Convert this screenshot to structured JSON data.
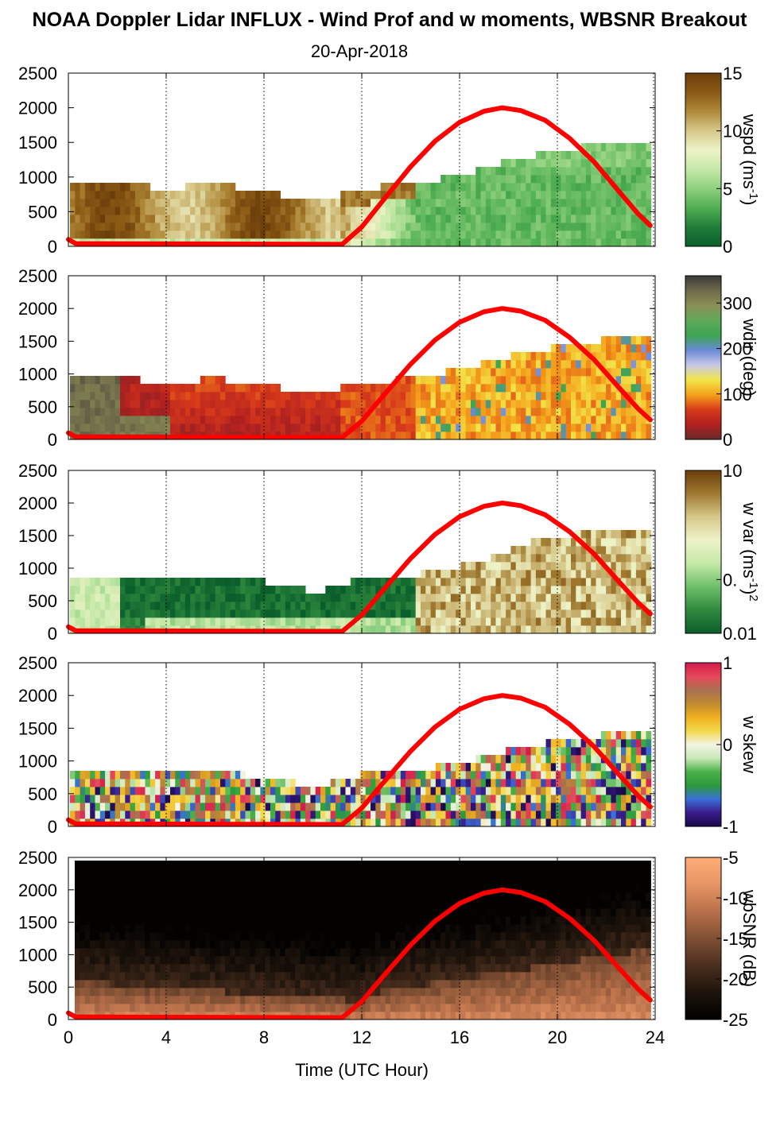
{
  "title": "NOAA Doppler Lidar INFLUX - Wind Prof and w moments, WBSNR Breakout",
  "subtitle": "20-Apr-2018",
  "x_axis": {
    "label": "Time (UTC Hour)",
    "range": [
      0,
      24
    ],
    "ticks": [
      0,
      4,
      8,
      12,
      16,
      20,
      24
    ]
  },
  "chart_data": [
    {
      "type": "heatmap",
      "panel": "wspd",
      "colorbar_label": "wspd (ms",
      "colorbar_sup": "-1",
      "colorbar_close": ")",
      "colorbar_range": [
        0,
        15
      ],
      "colorbar_ticks": [
        "15",
        "10",
        "5",
        "0"
      ],
      "colorbar_colors": [
        "#6b3d0a",
        "#8a5a15",
        "#b08a3a",
        "#d7c88a",
        "#eef3c8",
        "#c6e9a8",
        "#8fd07d",
        "#4fae52",
        "#1f7d3a",
        "#0a5e2b"
      ],
      "yrange": [
        0,
        2500
      ],
      "yticks": [
        0,
        500,
        1000,
        1500,
        2000,
        2500
      ],
      "xrange": [
        0,
        24
      ],
      "approx_data_top_m": [
        [
          0,
          950
        ],
        [
          2,
          950
        ],
        [
          4,
          900
        ],
        [
          6,
          950
        ],
        [
          8,
          850
        ],
        [
          10,
          700
        ],
        [
          12,
          900
        ],
        [
          14,
          950
        ],
        [
          16,
          1100
        ],
        [
          18,
          1300
        ],
        [
          20,
          1450
        ],
        [
          22,
          1550
        ],
        [
          24,
          1550
        ]
      ],
      "approx_wind_speed_ms": "10-15 in 0-11 UTC below 900 m; 2-6 in 14-24 UTC"
    },
    {
      "type": "heatmap",
      "panel": "wdir",
      "colorbar_label": "wdir (deg)",
      "colorbar_range": [
        0,
        360
      ],
      "colorbar_ticks": [
        "300",
        "200",
        "100",
        "0"
      ],
      "colorbar_colors": [
        "#3a3a3a",
        "#6f6a4a",
        "#8a8f55",
        "#5fa85a",
        "#3da550",
        "#6a8ad8",
        "#c8c8e8",
        "#f2e64a",
        "#f5a21a",
        "#d83a1a",
        "#b02020",
        "#6a2a2a"
      ],
      "yrange": [
        0,
        2500
      ],
      "yticks": [
        0,
        500,
        1000,
        1500,
        2000,
        2500
      ],
      "xrange": [
        0,
        24
      ],
      "approx_direction_deg": "320-360 at 0-2 UTC; 10-60 from 4-11 UTC; 60-110 after 14 UTC"
    },
    {
      "type": "heatmap",
      "panel": "w var",
      "colorbar_label": "w var (ms",
      "colorbar_sup": "-1",
      "colorbar_close": ")",
      "colorbar_sup2": "2",
      "colorbar_range": [
        0.01,
        10
      ],
      "colorbar_scale": "log",
      "colorbar_ticks": [
        "10",
        "0.",
        "0.01"
      ],
      "colorbar_colors": [
        "#6b3d0a",
        "#a07a30",
        "#d7c88a",
        "#eef3c8",
        "#c6e9a8",
        "#6cc06a",
        "#2f8a3e",
        "#0a5e2b"
      ],
      "yrange": [
        0,
        2500
      ],
      "yticks": [
        0,
        500,
        1000,
        1500,
        2000,
        2500
      ],
      "xrange": [
        0,
        24
      ]
    },
    {
      "type": "heatmap",
      "panel": "w skew",
      "colorbar_label": "w skew",
      "colorbar_range": [
        -1,
        1
      ],
      "colorbar_ticks": [
        "1",
        "0",
        "-1"
      ],
      "colorbar_colors": [
        "#d01a4a",
        "#e8485a",
        "#a87050",
        "#c08a30",
        "#f0b020",
        "#f2d84a",
        "#f4f4e4",
        "#c8e8b8",
        "#4ab048",
        "#2a9a3a",
        "#3a70d8",
        "#3a1a8a",
        "#1a0a4a"
      ],
      "yrange": [
        0,
        2500
      ],
      "yticks": [
        0,
        500,
        1000,
        1500,
        2000,
        2500
      ],
      "xrange": [
        0,
        24
      ]
    },
    {
      "type": "heatmap",
      "panel": "wbSNR",
      "colorbar_label": "wbSNR (dB)",
      "colorbar_range": [
        -25,
        -5
      ],
      "colorbar_ticks": [
        "-5",
        "-10",
        "-15",
        "-20",
        "-25"
      ],
      "colorbar_colors": [
        "#ffae78",
        "#e69564",
        "#b8704a",
        "#805034",
        "#4a2e1e",
        "#1e140c",
        "#000000"
      ],
      "yrange": [
        0,
        2500
      ],
      "yticks": [
        0,
        500,
        1000,
        1500,
        2000,
        2500
      ],
      "xrange": [
        0,
        24
      ]
    }
  ],
  "solar_curve": {
    "color": "#ff0000",
    "x": [
      0,
      0.3,
      11.2,
      12,
      13,
      14,
      15,
      16,
      17,
      17.75,
      18.5,
      19.5,
      20.5,
      21.5,
      22.5,
      23.3,
      23.8
    ],
    "y": [
      100,
      40,
      30,
      280,
      720,
      1150,
      1520,
      1790,
      1950,
      2000,
      1960,
      1820,
      1560,
      1220,
      800,
      470,
      300
    ]
  }
}
